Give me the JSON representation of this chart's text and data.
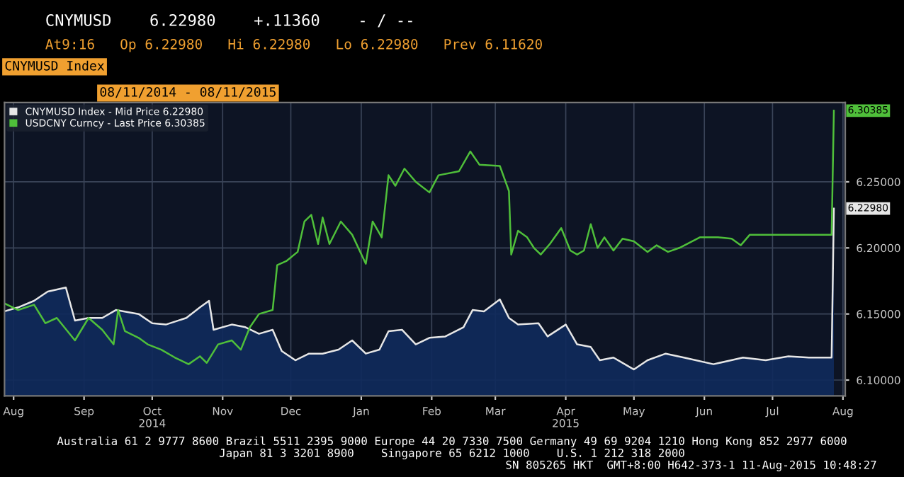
{
  "chart_data": {
    "type": "line",
    "title": "CNYMUSD    6.22980    +.11360    - / --",
    "subtitle": "At9:16   Op 6.22980   Hi 6.22980   Lo 6.22980   Prev 6.11620",
    "annotations": [
      "CNYMUSD Index",
      "08/11/2014 - 08/11/2015",
      "Australia 61 2 9777 8600 Brazil 5511 2395 9000 Europe 44 20 7330 7500 Germany 49 69 9204 1210 Hong Kong 852 2977 6000",
      "Japan 81 3 3201 8900    Singapore 65 6212 1000    U.S. 1 212 318 2000",
      "SN 805265 HKT  GMT+8:00 H642-373-1 11-Aug-2015 10:48:27",
      {
        "text": "6.30385",
        "x": "2015-08-11",
        "y": 6.30385
      },
      {
        "text": "6.22980",
        "x": "2015-08-11",
        "y": 6.2298
      }
    ],
    "series": [
      {
        "name": "CNYMUSD Index - Mid Price 6.22980",
        "type": "area",
        "color": "#e6e6e6",
        "x": [
          "2014-08-11",
          "2014-08-17",
          "2014-08-24",
          "2014-08-30",
          "2014-09-07",
          "2014-09-11",
          "2014-09-17",
          "2014-09-23",
          "2014-09-29",
          "2014-10-09",
          "2014-10-15",
          "2014-10-21",
          "2014-10-30",
          "2014-11-05",
          "2014-11-09",
          "2014-11-11",
          "2014-11-19",
          "2014-11-25",
          "2014-12-01",
          "2014-12-07",
          "2014-12-11",
          "2014-12-17",
          "2014-12-23",
          "2014-12-29",
          "2015-01-05",
          "2015-01-11",
          "2015-01-17",
          "2015-01-23",
          "2015-01-27",
          "2015-02-02",
          "2015-02-08",
          "2015-02-14",
          "2015-02-21",
          "2015-03-01",
          "2015-03-05",
          "2015-03-10",
          "2015-03-17",
          "2015-03-21",
          "2015-03-25",
          "2015-04-03",
          "2015-04-07",
          "2015-04-15",
          "2015-04-20",
          "2015-04-26",
          "2015-04-30",
          "2015-05-06",
          "2015-05-15",
          "2015-05-21",
          "2015-05-29",
          "2015-06-06",
          "2015-06-19",
          "2015-07-02",
          "2015-07-12",
          "2015-07-22",
          "2015-07-31",
          "2015-08-10",
          "2015-08-11"
        ],
        "values": [
          6.152,
          6.155,
          6.16,
          6.167,
          6.17,
          6.145,
          6.147,
          6.147,
          6.153,
          6.15,
          6.143,
          6.142,
          6.147,
          6.155,
          6.16,
          6.138,
          6.142,
          6.14,
          6.135,
          6.138,
          6.122,
          6.115,
          6.12,
          6.12,
          6.123,
          6.13,
          6.12,
          6.123,
          6.137,
          6.138,
          6.127,
          6.132,
          6.133,
          6.14,
          6.153,
          6.152,
          6.161,
          6.147,
          6.142,
          6.143,
          6.133,
          6.142,
          6.127,
          6.125,
          6.115,
          6.117,
          6.108,
          6.115,
          6.12,
          6.117,
          6.112,
          6.117,
          6.115,
          6.118,
          6.117,
          6.117,
          6.2298
        ]
      },
      {
        "name": "USDCNY Curncy - Last Price 6.30385",
        "color": "#4fbf3a",
        "x": [
          "2014-08-11",
          "2014-08-17",
          "2014-08-24",
          "2014-08-29",
          "2014-09-03",
          "2014-09-11",
          "2014-09-17",
          "2014-09-23",
          "2014-09-28",
          "2014-09-30",
          "2014-10-03",
          "2014-10-09",
          "2014-10-13",
          "2014-10-19",
          "2014-10-25",
          "2014-10-31",
          "2014-11-05",
          "2014-11-08",
          "2014-11-13",
          "2014-11-19",
          "2014-11-23",
          "2014-11-27",
          "2014-12-01",
          "2014-12-07",
          "2014-12-09",
          "2014-12-13",
          "2014-12-18",
          "2014-12-21",
          "2014-12-24",
          "2014-12-27",
          "2014-12-29",
          "2015-01-01",
          "2015-01-06",
          "2015-01-11",
          "2015-01-17",
          "2015-01-20",
          "2015-01-24",
          "2015-01-27",
          "2015-01-30",
          "2015-02-03",
          "2015-02-08",
          "2015-02-14",
          "2015-02-18",
          "2015-02-27",
          "2015-03-04",
          "2015-03-08",
          "2015-03-17",
          "2015-03-21",
          "2015-03-22",
          "2015-03-25",
          "2015-03-29",
          "2015-04-01",
          "2015-04-04",
          "2015-04-08",
          "2015-04-13",
          "2015-04-17",
          "2015-04-20",
          "2015-04-23",
          "2015-04-26",
          "2015-04-29",
          "2015-05-02",
          "2015-05-06",
          "2015-05-10",
          "2015-05-15",
          "2015-05-21",
          "2015-05-25",
          "2015-05-30",
          "2015-06-04",
          "2015-06-13",
          "2015-06-21",
          "2015-06-27",
          "2015-07-01",
          "2015-07-05",
          "2015-07-22",
          "2015-08-10",
          "2015-08-11"
        ],
        "values": [
          6.158,
          6.153,
          6.157,
          6.143,
          6.147,
          6.13,
          6.147,
          6.138,
          6.127,
          6.153,
          6.137,
          6.132,
          6.127,
          6.123,
          6.117,
          6.112,
          6.118,
          6.113,
          6.127,
          6.13,
          6.123,
          6.14,
          6.15,
          6.153,
          6.187,
          6.19,
          6.197,
          6.22,
          6.225,
          6.203,
          6.223,
          6.203,
          6.22,
          6.21,
          6.188,
          6.22,
          6.208,
          6.255,
          6.247,
          6.26,
          6.25,
          6.242,
          6.255,
          6.258,
          6.273,
          6.263,
          6.262,
          6.243,
          6.195,
          6.213,
          6.208,
          6.2,
          6.195,
          6.203,
          6.215,
          6.198,
          6.195,
          6.198,
          6.218,
          6.2,
          6.208,
          6.198,
          6.207,
          6.205,
          6.197,
          6.202,
          6.197,
          6.2,
          6.208,
          6.208,
          6.207,
          6.202,
          6.21,
          6.21,
          6.21,
          6.30385
        ]
      }
    ],
    "xlim": [
      "2014-08-11",
      "2015-08-16"
    ],
    "xticks": [
      {
        "value": "2014-08-15",
        "label": "Aug"
      },
      {
        "value": "2014-09-15",
        "label": "Sep"
      },
      {
        "value": "2014-10-15",
        "label": "Oct\n2014"
      },
      {
        "value": "2014-11-15",
        "label": "Nov"
      },
      {
        "value": "2014-12-15",
        "label": "Dec"
      },
      {
        "value": "2015-01-15",
        "label": "Jan"
      },
      {
        "value": "2015-02-15",
        "label": "Feb"
      },
      {
        "value": "2015-03-15",
        "label": "Mar"
      },
      {
        "value": "2015-04-15",
        "label": "Apr\n2015"
      },
      {
        "value": "2015-05-15",
        "label": "May"
      },
      {
        "value": "2015-06-15",
        "label": "Jun"
      },
      {
        "value": "2015-07-15",
        "label": "Jul"
      },
      {
        "value": "2015-08-15",
        "label": "Aug"
      }
    ],
    "ylim": [
      6.088,
      6.31
    ],
    "yticks": [
      {
        "value": 6.1,
        "label": "6.10000"
      },
      {
        "value": 6.15,
        "label": "6.15000"
      },
      {
        "value": 6.2,
        "label": "6.20000"
      },
      {
        "value": 6.25,
        "label": "6.25000"
      }
    ],
    "grid": true,
    "legend": "top left"
  }
}
